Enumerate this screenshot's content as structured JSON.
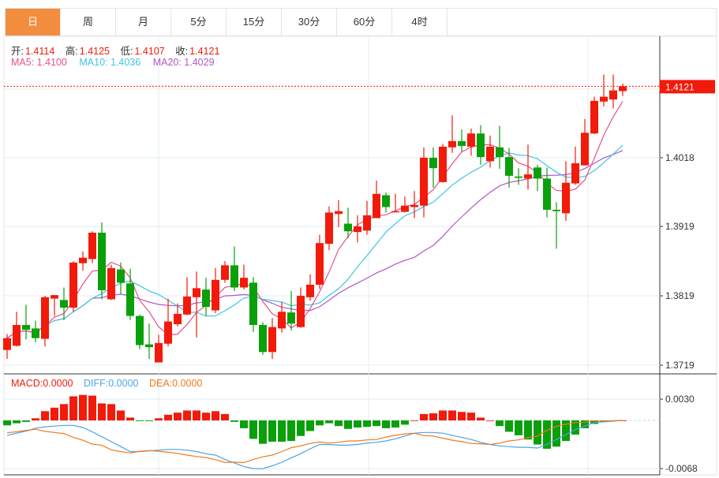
{
  "tabs": [
    {
      "label": "日",
      "active": true
    },
    {
      "label": "周"
    },
    {
      "label": "月"
    },
    {
      "label": "5分"
    },
    {
      "label": "15分"
    },
    {
      "label": "30分"
    },
    {
      "label": "60分"
    },
    {
      "label": "4时"
    }
  ],
  "ohlc": {
    "open_label": "开:",
    "open": "1.4114",
    "high_label": "高:",
    "high": "1.4125",
    "low_label": "低:",
    "low": "1.4107",
    "close_label": "收:",
    "close": "1.4121"
  },
  "ma": {
    "ma5": "MA5: 1.4100",
    "ma10": "MA10: 1.4036",
    "ma20": "MA20: 1.4029"
  },
  "macd_legend": {
    "macd": "MACD:0.0000",
    "diff": "DIFF:0.0000",
    "dea": "DEA:0.0000"
  },
  "current_price": "1.4121",
  "colors": {
    "up": "#f21a0a",
    "down": "#0aa00a",
    "ma5": "#e8508a",
    "ma10": "#3ec6e0",
    "ma20": "#b455c8",
    "diff": "#4aa3ea",
    "dea": "#f07a1c",
    "accent": "#f38d3f"
  },
  "chart_data": {
    "type": "candlestick",
    "price_ticks": [
      "1.4018",
      "1.3919",
      "1.3819",
      "1.3719"
    ],
    "macd_ticks": [
      "0.0030",
      "-0.0068"
    ],
    "candles": [
      [
        1.3741,
        1.3764,
        1.3728,
        1.3758
      ],
      [
        1.3747,
        1.3796,
        1.3746,
        1.3777
      ],
      [
        1.3777,
        1.3806,
        1.3756,
        1.377
      ],
      [
        1.3772,
        1.3783,
        1.3752,
        1.3758
      ],
      [
        1.3757,
        1.3819,
        1.3746,
        1.3817
      ],
      [
        1.3815,
        1.382,
        1.379,
        1.382
      ],
      [
        1.3813,
        1.3831,
        1.3784,
        1.3802
      ],
      [
        1.3802,
        1.3869,
        1.3796,
        1.3867
      ],
      [
        1.3866,
        1.3883,
        1.3855,
        1.3874
      ],
      [
        1.3872,
        1.3912,
        1.3866,
        1.391
      ],
      [
        1.391,
        1.3925,
        1.3814,
        1.3827
      ],
      [
        1.3814,
        1.3864,
        1.3813,
        1.3859
      ],
      [
        1.3857,
        1.3867,
        1.3822,
        1.3838
      ],
      [
        1.3837,
        1.3858,
        1.3784,
        1.379
      ],
      [
        1.379,
        1.3792,
        1.3742,
        1.3748
      ],
      [
        1.3749,
        1.3779,
        1.3728,
        1.3745
      ],
      [
        1.3723,
        1.3763,
        1.3723,
        1.3751
      ],
      [
        1.375,
        1.3815,
        1.3746,
        1.3782
      ],
      [
        1.3778,
        1.3808,
        1.3775,
        1.3793
      ],
      [
        1.3792,
        1.3846,
        1.3791,
        1.3818
      ],
      [
        1.3817,
        1.3854,
        1.3759,
        1.383
      ],
      [
        1.3828,
        1.3845,
        1.379,
        1.3803
      ],
      [
        1.3798,
        1.3859,
        1.3794,
        1.3842
      ],
      [
        1.3842,
        1.3869,
        1.3838,
        1.3863
      ],
      [
        1.3863,
        1.389,
        1.3826,
        1.3831
      ],
      [
        1.3831,
        1.3864,
        1.3828,
        1.3845
      ],
      [
        1.3838,
        1.3846,
        1.3767,
        1.3777
      ],
      [
        1.3777,
        1.3781,
        1.3734,
        1.3738
      ],
      [
        1.3738,
        1.3787,
        1.3728,
        1.3774
      ],
      [
        1.3772,
        1.381,
        1.3766,
        1.3796
      ],
      [
        1.3795,
        1.3826,
        1.3769,
        1.3779
      ],
      [
        1.3774,
        1.3831,
        1.3773,
        1.3819
      ],
      [
        1.3817,
        1.385,
        1.3812,
        1.3835
      ],
      [
        1.3835,
        1.3907,
        1.3829,
        1.3895
      ],
      [
        1.3894,
        1.3948,
        1.3885,
        1.3939
      ],
      [
        1.3937,
        1.3957,
        1.3918,
        1.3941
      ],
      [
        1.3923,
        1.3946,
        1.3902,
        1.3912
      ],
      [
        1.3911,
        1.3935,
        1.3896,
        1.3919
      ],
      [
        1.3913,
        1.3956,
        1.3907,
        1.3935
      ],
      [
        1.3931,
        1.3985,
        1.3931,
        1.3966
      ],
      [
        1.3964,
        1.3968,
        1.3939,
        1.3947
      ],
      [
        1.394,
        1.3966,
        1.3939,
        1.3941
      ],
      [
        1.394,
        1.3962,
        1.3939,
        1.3949
      ],
      [
        1.3947,
        1.397,
        1.3931,
        1.395
      ],
      [
        1.3949,
        1.4033,
        1.3932,
        1.4018
      ],
      [
        1.4018,
        1.4033,
        1.3975,
        1.4003
      ],
      [
        1.3983,
        1.4038,
        1.3982,
        1.4034
      ],
      [
        1.4033,
        1.4079,
        1.4025,
        1.4042
      ],
      [
        1.4042,
        1.4059,
        1.4027,
        1.4035
      ],
      [
        1.4034,
        1.406,
        1.4021,
        1.4053
      ],
      [
        1.4053,
        1.4065,
        1.4008,
        1.4019
      ],
      [
        1.4013,
        1.405,
        1.4004,
        1.4034
      ],
      [
        1.4033,
        1.4064,
        1.4002,
        1.4019
      ],
      [
        1.4019,
        1.4032,
        1.3975,
        1.3992
      ],
      [
        1.3991,
        1.4003,
        1.3979,
        1.3989
      ],
      [
        1.3988,
        1.4037,
        1.3972,
        1.3994
      ],
      [
        1.4004,
        1.4008,
        1.397,
        1.3988
      ],
      [
        1.3988,
        1.4004,
        1.3932,
        1.3943
      ],
      [
        1.3943,
        1.3954,
        1.3887,
        1.3941
      ],
      [
        1.3938,
        1.4013,
        1.3927,
        1.3982
      ],
      [
        1.3981,
        1.4034,
        1.3979,
        1.401
      ],
      [
        1.4007,
        1.4074,
        1.4007,
        1.4054
      ],
      [
        1.4053,
        1.4106,
        1.4052,
        1.41
      ],
      [
        1.4099,
        1.4138,
        1.4092,
        1.4106
      ],
      [
        1.4102,
        1.4138,
        1.4089,
        1.4115
      ],
      [
        1.4114,
        1.4125,
        1.4107,
        1.4121
      ]
    ],
    "macd": [
      -0.0007,
      -0.0004,
      -0.0002,
      0.0003,
      0.0013,
      0.0018,
      0.0023,
      0.0034,
      0.0036,
      0.0035,
      0.0024,
      0.0023,
      0.0014,
      0.0004,
      -0.0001,
      -0.0001,
      0.0003,
      0.0008,
      0.0011,
      0.0014,
      0.0014,
      0.0011,
      0.0013,
      0.0009,
      -0.0002,
      -0.0011,
      -0.0026,
      -0.0033,
      -0.003,
      -0.003,
      -0.0029,
      -0.0022,
      -0.0015,
      -0.0007,
      -0.0004,
      -0.0008,
      -0.0012,
      -0.001,
      -0.0009,
      -0.0008,
      -0.0011,
      -0.001,
      -0.0006,
      0,
      0.0009,
      0.001,
      0.0014,
      0.0014,
      0.0012,
      0.0011,
      0.0004,
      0,
      -0.0008,
      -0.0016,
      -0.0021,
      -0.0027,
      -0.0034,
      -0.004,
      -0.0037,
      -0.0029,
      -0.002,
      -0.0011,
      -0.0005,
      -0.0002,
      -0.0001,
      0
    ],
    "diff": [
      -0.0021,
      -0.0018,
      -0.0015,
      -0.0011,
      -0.0009,
      -0.0008,
      -0.0007,
      -0.0007,
      -0.001,
      -0.0016,
      -0.0023,
      -0.003,
      -0.0037,
      -0.0044,
      -0.0044,
      -0.0043,
      -0.0042,
      -0.0041,
      -0.0041,
      -0.0042,
      -0.0044,
      -0.0047,
      -0.0049,
      -0.0055,
      -0.006,
      -0.0065,
      -0.0068,
      -0.0068,
      -0.0064,
      -0.0059,
      -0.0053,
      -0.0047,
      -0.004,
      -0.0034,
      -0.0034,
      -0.0035,
      -0.0035,
      -0.0034,
      -0.0032,
      -0.0031,
      -0.0029,
      -0.0026,
      -0.0022,
      -0.0018,
      -0.0017,
      -0.0017,
      -0.0018,
      -0.0021,
      -0.0024,
      -0.0027,
      -0.0031,
      -0.0034,
      -0.0036,
      -0.0037,
      -0.0038,
      -0.0038,
      -0.0039,
      -0.0034,
      -0.0027,
      -0.002,
      -0.0013,
      -0.0008,
      -0.0003,
      -0.0002,
      -0.0001,
      0
    ]
  }
}
